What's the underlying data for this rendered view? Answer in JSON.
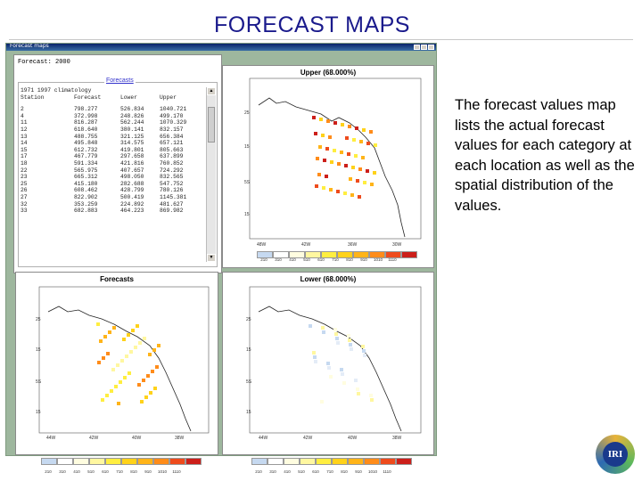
{
  "slide": {
    "title": "FORECAST MAPS",
    "description": "The forecast values map lists the actual forecast values for each category at each location as well as the spatial distribution of the values."
  },
  "window": {
    "title": "Forecast maps",
    "forecast_label": "Forecast: 2000",
    "group_label": "Forecasts",
    "list_header1": "1971 1997 climatology",
    "columns": [
      "Station",
      "Forecast",
      "Lower",
      "Upper"
    ],
    "rows": [
      [
        "2",
        "798.277",
        "526.834",
        "1040.721"
      ],
      [
        "4",
        "372.998",
        "248.826",
        "499.170"
      ],
      [
        "11",
        "816.287",
        "562.244",
        "1070.329"
      ],
      [
        "12",
        "618.640",
        "380.141",
        "832.157"
      ],
      [
        "13",
        "488.755",
        "321.125",
        "656.384"
      ],
      [
        "14",
        "495.848",
        "314.575",
        "657.121"
      ],
      [
        "15",
        "612.732",
        "419.801",
        "805.663"
      ],
      [
        "17",
        "467.779",
        "297.658",
        "637.899"
      ],
      [
        "18",
        "591.334",
        "421.816",
        "760.852"
      ],
      [
        "22",
        "565.975",
        "407.657",
        "724.292"
      ],
      [
        "23",
        "665.312",
        "498.050",
        "832.565"
      ],
      [
        "25",
        "415.180",
        "282.688",
        "547.752"
      ],
      [
        "26",
        "608.462",
        "428.799",
        "780.126"
      ],
      [
        "27",
        "822.902",
        "500.419",
        "1145.381"
      ],
      [
        "32",
        "353.259",
        "224.892",
        "481.627"
      ],
      [
        "33",
        "682.883",
        "464.223",
        "869.982"
      ]
    ]
  },
  "maps": {
    "upper": {
      "title": "Upper (68.000%)"
    },
    "forecasts": {
      "title": "Forecasts"
    },
    "lower": {
      "title": "Lower (68.000%)"
    },
    "lat_labels": [
      "25",
      "15",
      "5S",
      "15"
    ],
    "lon_labels_upper": [
      "48W",
      "42W",
      "36W",
      "30W"
    ],
    "lon_labels_lower": [
      "44W",
      "42W",
      "40W",
      "38W"
    ],
    "colorbar_labels": [
      "210",
      "310",
      "410",
      "510",
      "610",
      "710",
      "810",
      "910",
      "1010",
      "1110"
    ],
    "colorbar_colors": [
      "#c6d9f0",
      "#ffffff",
      "#fffde0",
      "#fff7a0",
      "#ffee40",
      "#ffd21a",
      "#ffb419",
      "#ff8c1a",
      "#ee4b1c",
      "#cc1f1a"
    ]
  },
  "logo": {
    "text": "IRI"
  }
}
